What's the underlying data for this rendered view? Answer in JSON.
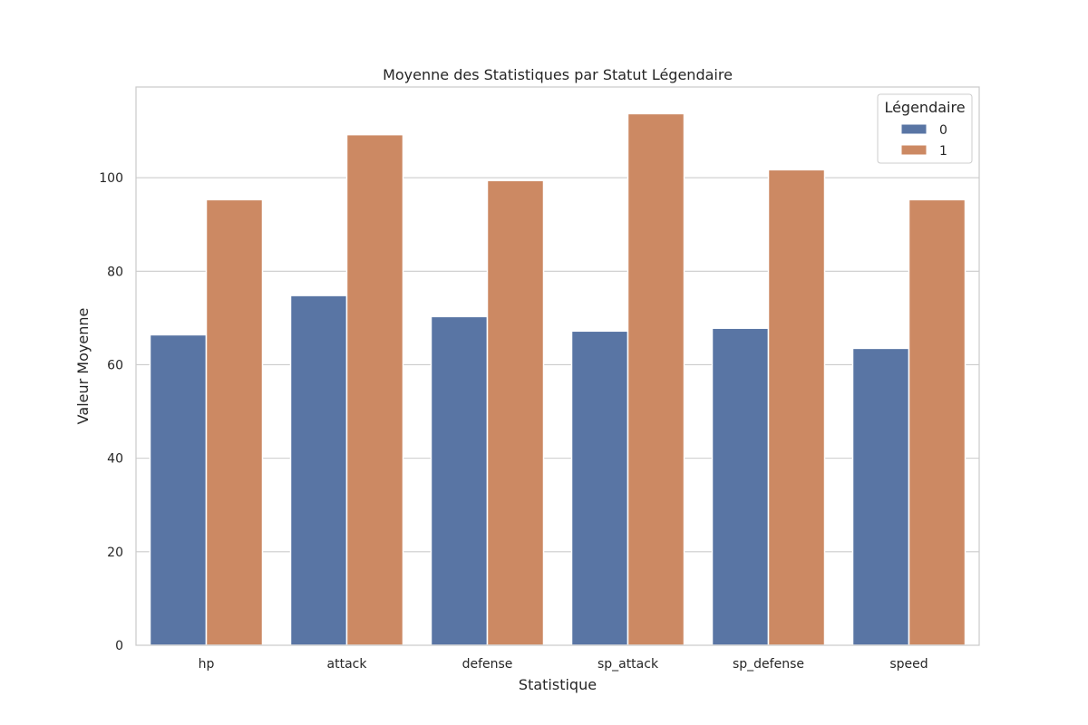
{
  "chart_data": {
    "type": "bar",
    "title": "Moyenne des Statistiques par Statut Légendaire",
    "xlabel": "Statistique",
    "ylabel": "Valeur Moyenne",
    "categories": [
      "hp",
      "attack",
      "defense",
      "sp_attack",
      "sp_defense",
      "speed"
    ],
    "series": [
      {
        "name": "0",
        "color": "#5975a4",
        "values": [
          66.4,
          74.8,
          70.3,
          67.2,
          67.8,
          63.5
        ]
      },
      {
        "name": "1",
        "color": "#cc8963",
        "values": [
          95.3,
          109.2,
          99.4,
          113.7,
          101.7,
          95.3
        ]
      }
    ],
    "ylim": [
      0,
      119.4
    ],
    "yticks": [
      0,
      20,
      40,
      60,
      80,
      100
    ],
    "grid": true,
    "legend": {
      "title": "Légendaire",
      "placement": "top-right"
    }
  }
}
